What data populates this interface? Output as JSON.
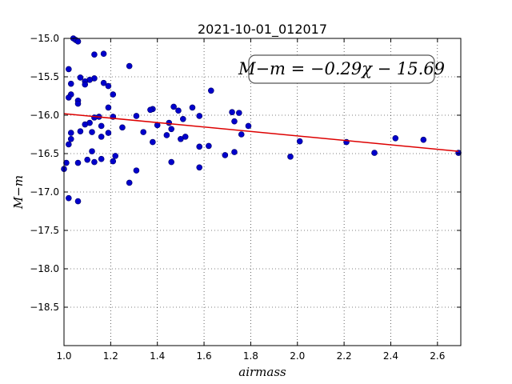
{
  "chart_data": {
    "type": "scatter",
    "title": "2021-10-01_012017",
    "xlabel": "airmass",
    "ylabel": "M−m",
    "xlim": [
      1.0,
      2.7
    ],
    "ylim": [
      -15.0,
      -19.0
    ],
    "y_inverted": true,
    "grid": true,
    "x_ticks": [
      "1.0",
      "1.2",
      "1.4",
      "1.6",
      "1.8",
      "2.0",
      "2.2",
      "2.4",
      "2.6"
    ],
    "y_ticks": [
      "−15.0",
      "−15.5",
      "−16.0",
      "−16.5",
      "−17.0",
      "−17.5",
      "−18.0",
      "−18.5"
    ],
    "annotation": "M−m = −0.29χ − 15.69",
    "fit": {
      "slope": -0.29,
      "intercept": -15.69,
      "x_range": [
        1.0,
        2.69
      ],
      "color": "#dd0000"
    },
    "point_color": "#0000cc",
    "points": [
      [
        1.04,
        -15.0
      ],
      [
        1.05,
        -15.02
      ],
      [
        1.06,
        -15.04
      ],
      [
        1.17,
        -15.2
      ],
      [
        1.13,
        -15.21
      ],
      [
        1.28,
        -15.36
      ],
      [
        1.02,
        -15.4
      ],
      [
        1.07,
        -15.51
      ],
      [
        1.13,
        -15.52
      ],
      [
        1.11,
        -15.54
      ],
      [
        1.09,
        -15.56
      ],
      [
        1.17,
        -15.58
      ],
      [
        1.03,
        -15.59
      ],
      [
        1.09,
        -15.6
      ],
      [
        1.19,
        -15.62
      ],
      [
        1.63,
        -15.68
      ],
      [
        1.21,
        -15.73
      ],
      [
        1.03,
        -15.73
      ],
      [
        1.02,
        -15.77
      ],
      [
        1.06,
        -15.81
      ],
      [
        1.06,
        -15.85
      ],
      [
        1.47,
        -15.89
      ],
      [
        1.55,
        -15.9
      ],
      [
        1.19,
        -15.9
      ],
      [
        1.38,
        -15.92
      ],
      [
        1.37,
        -15.93
      ],
      [
        1.49,
        -15.94
      ],
      [
        1.72,
        -15.96
      ],
      [
        1.75,
        -15.97
      ],
      [
        1.58,
        -16.01
      ],
      [
        1.31,
        -16.01
      ],
      [
        1.21,
        -16.02
      ],
      [
        1.15,
        -16.02
      ],
      [
        1.13,
        -16.03
      ],
      [
        1.51,
        -16.05
      ],
      [
        1.73,
        -16.08
      ],
      [
        1.11,
        -16.1
      ],
      [
        1.45,
        -16.1
      ],
      [
        1.09,
        -16.12
      ],
      [
        1.4,
        -16.13
      ],
      [
        1.79,
        -16.14
      ],
      [
        1.16,
        -16.14
      ],
      [
        1.25,
        -16.16
      ],
      [
        1.46,
        -16.18
      ],
      [
        1.07,
        -16.21
      ],
      [
        1.12,
        -16.22
      ],
      [
        1.34,
        -16.22
      ],
      [
        1.03,
        -16.23
      ],
      [
        1.19,
        -16.23
      ],
      [
        1.76,
        -16.25
      ],
      [
        1.44,
        -16.26
      ],
      [
        1.16,
        -16.28
      ],
      [
        1.52,
        -16.28
      ],
      [
        1.03,
        -16.31
      ],
      [
        1.5,
        -16.31
      ],
      [
        2.01,
        -16.34
      ],
      [
        1.38,
        -16.35
      ],
      [
        2.21,
        -16.35
      ],
      [
        2.42,
        -16.3
      ],
      [
        2.54,
        -16.32
      ],
      [
        1.02,
        -16.38
      ],
      [
        1.62,
        -16.4
      ],
      [
        1.58,
        -16.41
      ],
      [
        1.12,
        -16.47
      ],
      [
        1.73,
        -16.48
      ],
      [
        2.33,
        -16.49
      ],
      [
        2.69,
        -16.49
      ],
      [
        1.69,
        -16.52
      ],
      [
        1.22,
        -16.53
      ],
      [
        1.97,
        -16.54
      ],
      [
        1.16,
        -16.57
      ],
      [
        1.1,
        -16.58
      ],
      [
        1.21,
        -16.6
      ],
      [
        1.13,
        -16.61
      ],
      [
        1.46,
        -16.61
      ],
      [
        1.06,
        -16.62
      ],
      [
        1.01,
        -16.62
      ],
      [
        1.58,
        -16.68
      ],
      [
        1.0,
        -16.7
      ],
      [
        1.31,
        -16.72
      ],
      [
        1.28,
        -16.88
      ],
      [
        1.02,
        -17.08
      ],
      [
        1.06,
        -17.12
      ]
    ]
  }
}
